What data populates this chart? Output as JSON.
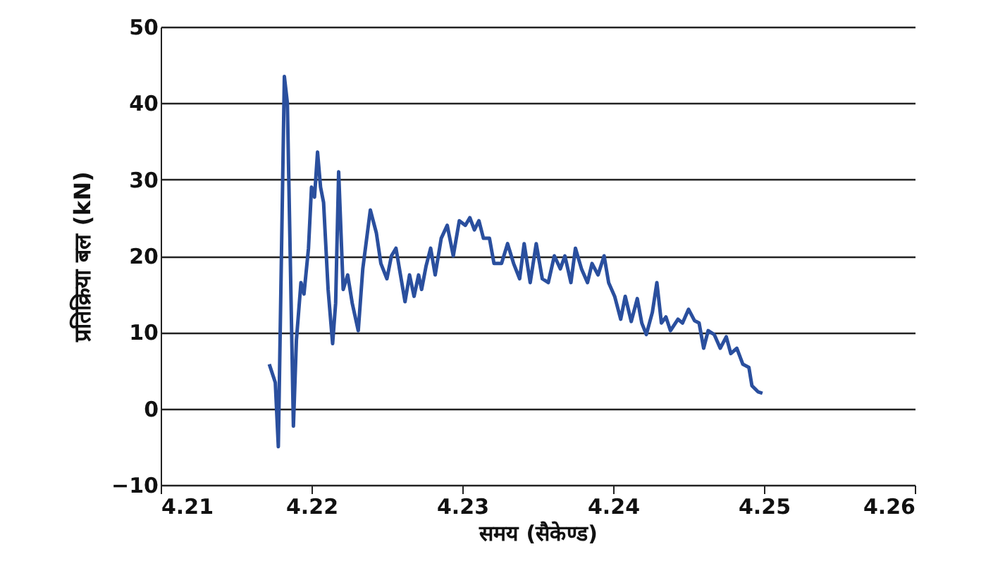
{
  "chart_data": {
    "type": "line",
    "xlabel": "समय (सैकेण्ड)",
    "ylabel": "प्रतिक्रिया बल (kN)",
    "xlim": [
      4.21,
      4.26
    ],
    "xticks": [
      4.21,
      4.22,
      4.23,
      4.24,
      4.25,
      4.26
    ],
    "ylim": [
      -10,
      50
    ],
    "yticks": [
      -10,
      0,
      10,
      20,
      30,
      40,
      50
    ],
    "grid": "y",
    "marker": "none",
    "line_style": "solid",
    "series": [
      {
        "color": "#2a4f9e",
        "x": [
          4.2172,
          4.2176,
          4.2178,
          4.2182,
          4.2184,
          4.2188,
          4.219,
          4.2193,
          4.2195,
          4.2198,
          4.22,
          4.2202,
          4.2204,
          4.2206,
          4.2208,
          4.2211,
          4.2214,
          4.2216,
          4.2218,
          4.2221,
          4.2224,
          4.2227,
          4.2231,
          4.2234,
          4.2239,
          4.2243,
          4.2246,
          4.225,
          4.2253,
          4.2256,
          4.2259,
          4.2262,
          4.2265,
          4.2268,
          4.2271,
          4.2273,
          4.2276,
          4.2279,
          4.2282,
          4.2286,
          4.229,
          4.2294,
          4.2298,
          4.2302,
          4.2305,
          4.2308,
          4.2311,
          4.2314,
          4.2318,
          4.2321,
          4.2326,
          4.233,
          4.2334,
          4.2338,
          4.2341,
          4.2345,
          4.2349,
          4.2353,
          4.2357,
          4.2361,
          4.2365,
          4.2368,
          4.2372,
          4.2375,
          4.2379,
          4.2383,
          4.2386,
          4.239,
          4.2394,
          4.2397,
          4.2401,
          4.2405,
          4.2408,
          4.2412,
          4.2416,
          4.2419,
          4.2422,
          4.2426,
          4.2429,
          4.2432,
          4.2435,
          4.2438,
          4.2443,
          4.2446,
          4.245,
          4.2454,
          4.2457,
          4.246,
          4.2463,
          4.2467,
          4.2471,
          4.2475,
          4.2478,
          4.2482,
          4.2486,
          4.249,
          4.2492,
          4.2496,
          4.2499
        ],
        "values": [
          5.8,
          3.4,
          -5,
          43.5,
          40,
          -2.3,
          9,
          16.5,
          15,
          21,
          29,
          27.7,
          33.6,
          29,
          27,
          15.6,
          8.5,
          13.8,
          31,
          15.6,
          17.5,
          13.8,
          10.2,
          18.3,
          26,
          23,
          19,
          17,
          20,
          21,
          17.5,
          14,
          17.5,
          14.7,
          17.5,
          15.6,
          18.7,
          21,
          17.5,
          22.3,
          24,
          20,
          24.6,
          24,
          25,
          23.4,
          24.6,
          22.3,
          22.3,
          19,
          19,
          21.6,
          19,
          17,
          21.6,
          16.5,
          21.6,
          17,
          16.5,
          20,
          18.3,
          20,
          16.5,
          21,
          18.3,
          16.5,
          19,
          17.5,
          20,
          16.5,
          14.7,
          11.7,
          14.7,
          11.4,
          14.4,
          11.2,
          9.7,
          12.6,
          16.5,
          11.2,
          12,
          10.2,
          11.7,
          11.2,
          13,
          11.5,
          11.2,
          7.9,
          10.2,
          9.7,
          7.9,
          9.4,
          7.2,
          7.9,
          5.8,
          5.4,
          3,
          2.2,
          2
        ]
      }
    ]
  }
}
